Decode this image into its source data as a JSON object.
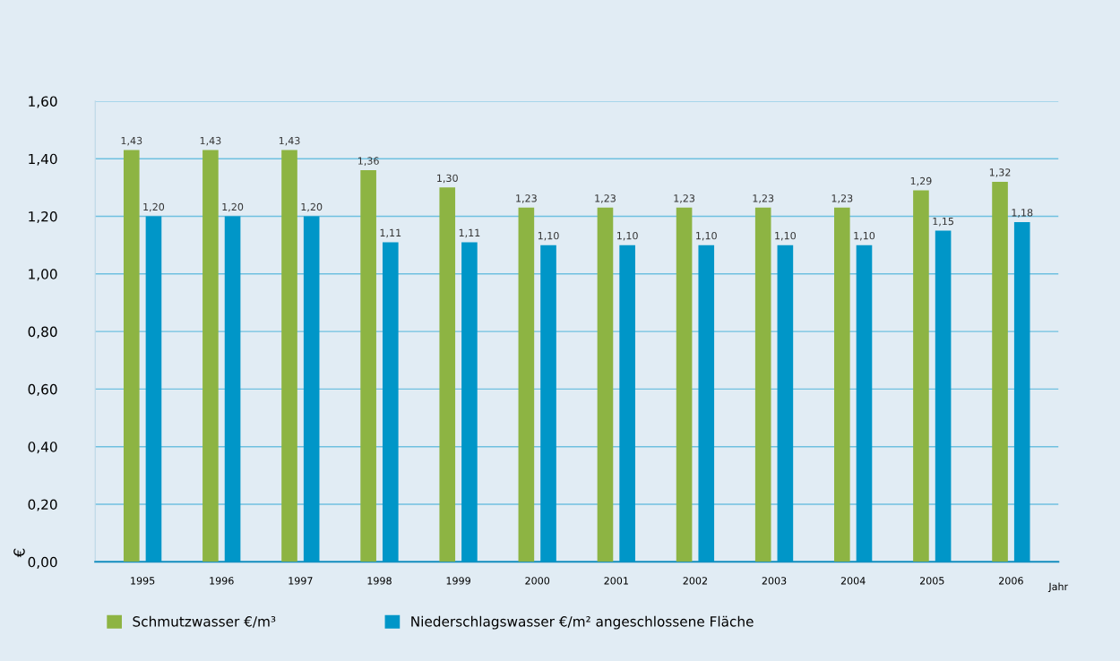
{
  "chart_data": {
    "type": "bar",
    "categories": [
      "1995",
      "1996",
      "1997",
      "1998",
      "1999",
      "2000",
      "2001",
      "2002",
      "2003",
      "2004",
      "2005",
      "2006"
    ],
    "xlabel": "Jahr",
    "ylabel": "€",
    "series": [
      {
        "name": "Schmutzwasser €/m³",
        "color": "#8db443",
        "values": [
          1.43,
          1.43,
          1.43,
          1.36,
          1.3,
          1.23,
          1.23,
          1.23,
          1.23,
          1.23,
          1.29,
          1.32
        ],
        "value_labels": [
          "1,43",
          "1,43",
          "1,43",
          "1,36",
          "1,30",
          "1,23",
          "1,23",
          "1,23",
          "1,23",
          "1,23",
          "1,29",
          "1,32"
        ]
      },
      {
        "name": "Niederschlagswasser €/m² angeschlossene Fläche",
        "color": "#0096c8",
        "values": [
          1.2,
          1.2,
          1.2,
          1.11,
          1.11,
          1.1,
          1.1,
          1.1,
          1.1,
          1.1,
          1.15,
          1.18
        ],
        "value_labels": [
          "1,20",
          "1,20",
          "1,20",
          "1,11",
          "1,11",
          "1,10",
          "1,10",
          "1,10",
          "1,10",
          "1,10",
          "1,15",
          "1,18"
        ]
      }
    ],
    "ylim": [
      0,
      1.6
    ],
    "yticks": [
      {
        "value": 0,
        "label": "0,00"
      },
      {
        "value": 0.2,
        "label": "0,20"
      },
      {
        "value": 0.4,
        "label": "0,40"
      },
      {
        "value": 0.6,
        "label": "0,60"
      },
      {
        "value": 0.8,
        "label": "0,80"
      },
      {
        "value": 1.0,
        "label": "1,00"
      },
      {
        "value": 1.2,
        "label": "1,20"
      },
      {
        "value": 1.4,
        "label": "1,40"
      },
      {
        "value": 1.6,
        "label": "1,60"
      }
    ],
    "grid": "y",
    "legend": "bottom"
  }
}
